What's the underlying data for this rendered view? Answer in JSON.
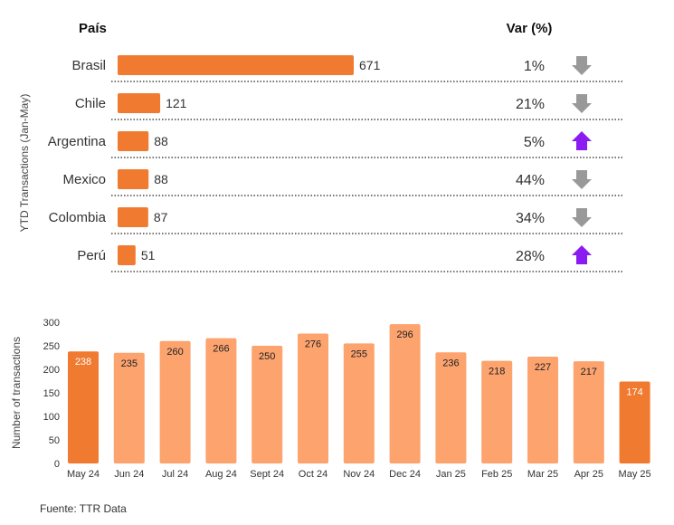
{
  "chart_data": [
    {
      "type": "bar",
      "orientation": "horizontal",
      "ylabel": "YTD Transactions  (Jan-May)",
      "headers": {
        "country": "País",
        "variation": "Var (%)"
      },
      "categories": [
        "Brasil",
        "Chile",
        "Argentina",
        "Mexico",
        "Colombia",
        "Perú"
      ],
      "values": [
        671,
        121,
        88,
        88,
        87,
        51
      ],
      "variation": [
        "1%",
        "21%",
        "5%",
        "44%",
        "34%",
        "28%"
      ],
      "trend": [
        "down",
        "down",
        "up",
        "down",
        "down",
        "up"
      ],
      "colors": {
        "bar": "#f07a30",
        "down_arrow": "#999999",
        "up_arrow": "#8a1cf2"
      }
    },
    {
      "type": "bar",
      "ylabel": "Number of transactions",
      "categories": [
        "May 24",
        "Jun 24",
        "Jul 24",
        "Aug 24",
        "Sept 24",
        "Oct 24",
        "Nov 24",
        "Dec 24",
        "Jan 25",
        "Feb 25",
        "Mar 25",
        "Apr 25",
        "May 25"
      ],
      "values": [
        238,
        235,
        260,
        266,
        250,
        276,
        255,
        296,
        236,
        218,
        227,
        217,
        174
      ],
      "highlight": [
        "May 24",
        "May 25"
      ],
      "ylim": [
        0,
        300
      ],
      "yticks": [
        0,
        50,
        100,
        150,
        200,
        250,
        300
      ],
      "grid": false,
      "colors": {
        "bar": "#fca36e",
        "highlight": "#f07a30"
      }
    }
  ],
  "source": "Fuente: TTR Data"
}
